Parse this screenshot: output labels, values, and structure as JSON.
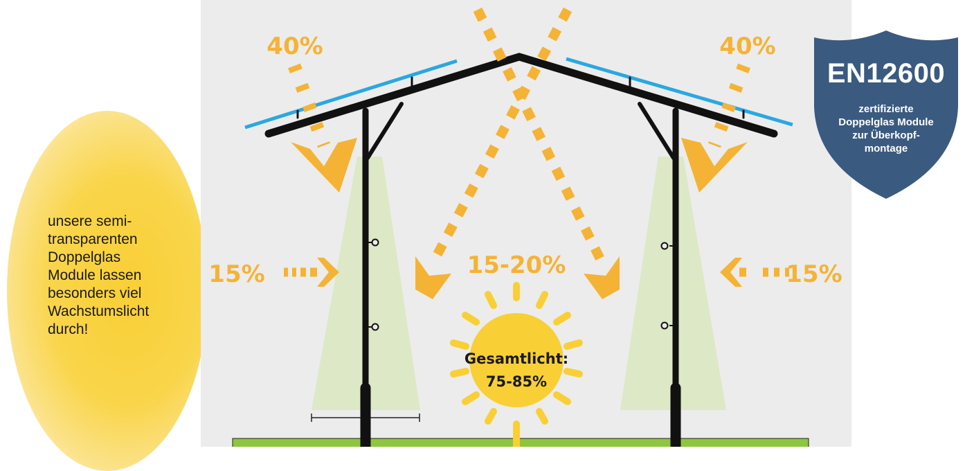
{
  "left_text": {
    "lines": [
      "unsere semi-",
      "transparenten",
      "Doppelglas",
      "Module lassen",
      "besonders viel",
      "Wachstumslicht",
      "durch!"
    ]
  },
  "diagram": {
    "roof_left_pct": "40%",
    "roof_right_pct": "40%",
    "side_left_pct": "15%",
    "side_right_pct": "15%",
    "center_pct": "15-20%",
    "total_label": "Gesamtlicht:",
    "total_value": "75-85%"
  },
  "badge": {
    "title": "EN12600",
    "subtitle_lines": [
      "zertifizierte",
      "Doppelglas Module",
      "zur Überkopf-",
      "montage"
    ]
  },
  "colors": {
    "light_orange": "#f5b335",
    "sun_yellow": "#f9cf36",
    "panel_blue": "#2aa8e0",
    "frame_black": "#111111",
    "grass_green": "#8ec63f",
    "plant_green": "#dde8c6",
    "badge_blue": "#3a5a80",
    "diagram_bg": "#ececec"
  }
}
